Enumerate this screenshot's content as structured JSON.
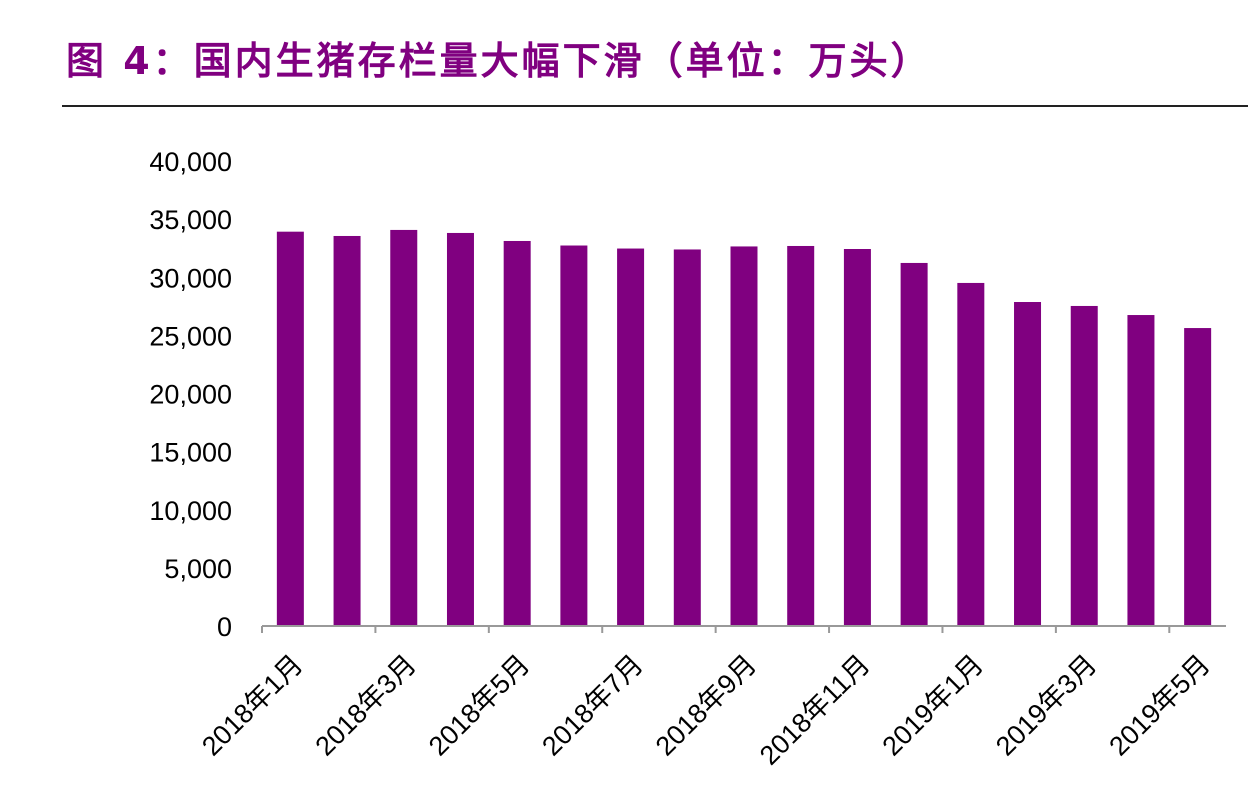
{
  "title": "图 4：国内生猪存栏量大幅下滑（单位：万头）",
  "chart_data": {
    "type": "bar",
    "title": "图 4：国内生猪存栏量大幅下滑（单位：万头）",
    "categories": [
      "2018年1月",
      "2018年2月",
      "2018年3月",
      "2018年4月",
      "2018年5月",
      "2018年6月",
      "2018年7月",
      "2018年8月",
      "2018年9月",
      "2018年10月",
      "2018年11月",
      "2018年12月",
      "2019年1月",
      "2019年2月",
      "2019年3月",
      "2019年4月",
      "2019年5月"
    ],
    "visible_xtick_labels": [
      "2018年1月",
      "2018年3月",
      "2018年5月",
      "2018年7月",
      "2018年9月",
      "2018年11月",
      "2019年1月",
      "2019年3月",
      "2019年5月"
    ],
    "values": [
      33920,
      33550,
      34070,
      33810,
      33120,
      32730,
      32470,
      32390,
      32650,
      32690,
      32430,
      31230,
      29510,
      27870,
      27530,
      26750,
      25630
    ],
    "ylim": [
      0,
      40000
    ],
    "yticks": [
      "0",
      "5,000",
      "10,000",
      "15,000",
      "20,000",
      "25,000",
      "30,000",
      "35,000",
      "40,000"
    ],
    "xlabel": "",
    "ylabel": "",
    "grid": false,
    "bar_color": "#800080"
  }
}
